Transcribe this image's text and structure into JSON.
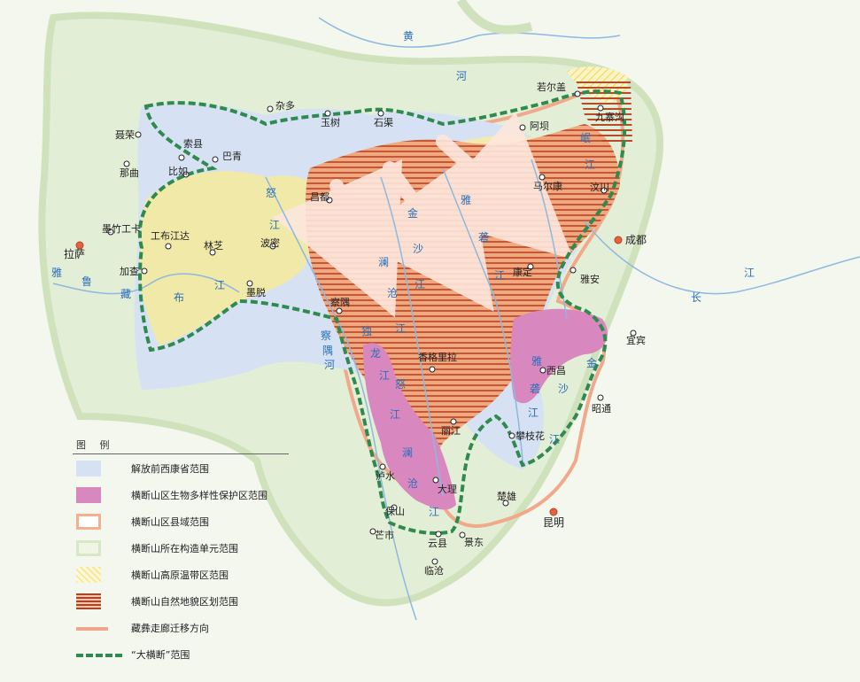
{
  "map": {
    "cities": [
      {
        "name": "若尔盖",
        "capital": false
      },
      {
        "name": "九寨沟",
        "capital": false
      },
      {
        "name": "阿坝",
        "capital": false
      },
      {
        "name": "石渠",
        "capital": false
      },
      {
        "name": "杂多",
        "capital": false
      },
      {
        "name": "玉树",
        "capital": false
      },
      {
        "name": "聂荣",
        "capital": false
      },
      {
        "name": "索县",
        "capital": false
      },
      {
        "name": "巴青",
        "capital": false
      },
      {
        "name": "那曲",
        "capital": false
      },
      {
        "name": "比如",
        "capital": false
      },
      {
        "name": "马尔康",
        "capital": false
      },
      {
        "name": "汶川",
        "capital": false
      },
      {
        "name": "昌都",
        "capital": false
      },
      {
        "name": "墨竹工卡",
        "capital": false
      },
      {
        "name": "拉萨",
        "capital": true
      },
      {
        "name": "工布江达",
        "capital": false
      },
      {
        "name": "林芝",
        "capital": false
      },
      {
        "name": "波密",
        "capital": false
      },
      {
        "name": "加查",
        "capital": false
      },
      {
        "name": "墨脱",
        "capital": false
      },
      {
        "name": "成都",
        "capital": true
      },
      {
        "name": "康定",
        "capital": false
      },
      {
        "name": "雅安",
        "capital": false
      },
      {
        "name": "察隅",
        "capital": false
      },
      {
        "name": "香格里拉",
        "capital": false
      },
      {
        "name": "宜宾",
        "capital": false
      },
      {
        "name": "西昌",
        "capital": false
      },
      {
        "name": "昭通",
        "capital": false
      },
      {
        "name": "丽江",
        "capital": false
      },
      {
        "name": "攀枝花",
        "capital": false
      },
      {
        "name": "泸水",
        "capital": false
      },
      {
        "name": "大理",
        "capital": false
      },
      {
        "name": "楚雄",
        "capital": false
      },
      {
        "name": "保山",
        "capital": false
      },
      {
        "name": "昆明",
        "capital": true
      },
      {
        "name": "芒市",
        "capital": false
      },
      {
        "name": "云县",
        "capital": false
      },
      {
        "name": "景东",
        "capital": false
      },
      {
        "name": "临沧",
        "capital": false
      }
    ],
    "rivers": [
      {
        "text": "黄"
      },
      {
        "text": "河"
      },
      {
        "text": "岷"
      },
      {
        "text": "江"
      },
      {
        "text": "雅"
      },
      {
        "text": "砻"
      },
      {
        "text": "江"
      },
      {
        "text": "金"
      },
      {
        "text": "沙"
      },
      {
        "text": "江"
      },
      {
        "text": "澜"
      },
      {
        "text": "沧"
      },
      {
        "text": "江"
      },
      {
        "text": "怒"
      },
      {
        "text": "江"
      },
      {
        "text": "雅"
      },
      {
        "text": "鲁"
      },
      {
        "text": "藏"
      },
      {
        "text": "布"
      },
      {
        "text": "江"
      },
      {
        "text": "察"
      },
      {
        "text": "隅"
      },
      {
        "text": "河"
      },
      {
        "text": "独"
      },
      {
        "text": "龙"
      },
      {
        "text": "江"
      },
      {
        "text": "怒"
      },
      {
        "text": "江"
      },
      {
        "text": "澜"
      },
      {
        "text": "沧"
      },
      {
        "text": "江"
      },
      {
        "text": "长"
      },
      {
        "text": "江"
      },
      {
        "text": "雅"
      },
      {
        "text": "砻"
      },
      {
        "text": "江"
      },
      {
        "text": "金"
      },
      {
        "text": "沙"
      },
      {
        "text": "江"
      }
    ]
  },
  "legend": {
    "title": "图  例",
    "items": [
      {
        "label": "解放前西康省范围",
        "fill": "#d6e2f3"
      },
      {
        "label": "横断山区生物多样性保护区范围",
        "fill": "#d987bf"
      },
      {
        "label": "横断山区县域范围",
        "fill": "#f5b08f"
      },
      {
        "label": "横断山所在构造单元范围",
        "fill": "#d7e8c4"
      },
      {
        "label": "横断山高原温带区范围",
        "fill": "#f6e79a"
      },
      {
        "label": "横断山自然地貌区划范围",
        "fill": "#a9462a"
      },
      {
        "label": "藏彝走廊迁移方向",
        "fill": "#f2a58c"
      },
      {
        "label": "“大横断”范围",
        "fill": "#2f8a4e"
      }
    ]
  }
}
